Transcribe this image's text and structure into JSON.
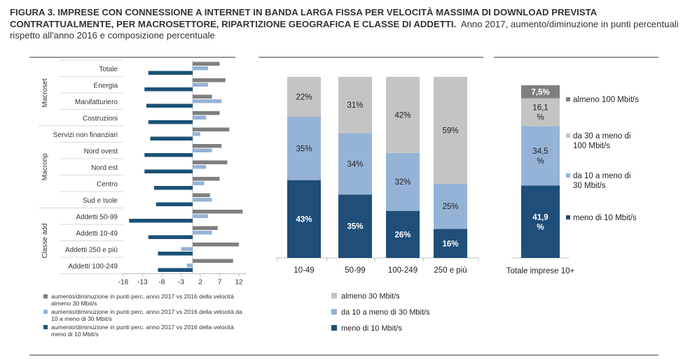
{
  "title": {
    "bold": "FIGURA 3. IMPRESE CON CONNESSIONE A INTERNET IN BANDA LARGA FISSA PER VELOCITÀ MASSIMA DI DOWNLOAD PREVISTA CONTRATTUALMENTE, PER MACROSETTORE, RIPARTIZIONE GEOGRAFICA E CLASSE DI ADDETTI.",
    "normal": "Anno 2017, aumento/diminuzione in punti percentuali rispetto all'anno 2016 e composizione percentuale"
  },
  "colors": {
    "almeno30": "#c4c4c4",
    "da10a30": "#95b3d7",
    "meno10": "#1f4e79",
    "gray_bar": "#7f7f7f",
    "light_blue_bar": "#95b3d7",
    "dark_blue_bar": "#1a5276",
    "grid": "#d9d9d9",
    "axis": "#bfbfbf"
  },
  "chart_data": [
    {
      "type": "bar",
      "orientation": "horizontal",
      "categories": [
        "Totale",
        "Energia",
        "Manifatturiero",
        "Costruzioni",
        "Servizi non finanziari",
        "Nord ovest",
        "Nord est",
        "Centro",
        "Sud e Isole",
        "Addetti 50-99",
        "Addetti 10-49",
        "Addetti 250 e più",
        "Addetti 100-249"
      ],
      "groups": [
        {
          "label": "Macroset",
          "categories": [
            "Totale",
            "Energia",
            "Manifatturiero",
            "Costruzioni"
          ]
        },
        {
          "label": "Macrorip",
          "categories": [
            "Servizi non finanziari",
            "Nord ovest",
            "Nord est",
            "Centro",
            "Sud e Isole"
          ]
        },
        {
          "label": "Classe add",
          "categories": [
            "Addetti 50-99",
            "Addetti 10-49",
            "Addetti 250 e più",
            "Addetti 100-249"
          ]
        }
      ],
      "series": [
        {
          "name": "aumento/diminuzione in punti perc. anno 2017 vs 2016 della velocità almeno 30 Mbit/s",
          "values": [
            7,
            8.5,
            5,
            7,
            9.5,
            7.5,
            9,
            7,
            4.5,
            13,
            6.5,
            12,
            10.5
          ]
        },
        {
          "name": "aumento/diminuzione in punti perc. anno 2017 vs 2016 della velocità da 10 a meno di 30 Mbit/s",
          "values": [
            4,
            4,
            7.5,
            3.5,
            2,
            5,
            3.5,
            3,
            5,
            4,
            5,
            -3,
            -1.5
          ]
        },
        {
          "name": "aumento/diminuzione in punti perc. anno 2017 vs 2016 della velocità meno di 10 Mbit/s",
          "values": [
            -11.5,
            -12.5,
            -12,
            -11.5,
            -11,
            -12.5,
            -12.5,
            -10,
            -9.5,
            -16.5,
            -11.5,
            -9,
            -9
          ]
        }
      ],
      "x_ticks": [
        -18,
        -13,
        -8,
        -3,
        2,
        7,
        12
      ],
      "xlim": [
        -18,
        14
      ]
    },
    {
      "type": "bar",
      "stacked": true,
      "categories": [
        "10-49",
        "50-99",
        "100-249",
        "250 e più"
      ],
      "series": [
        {
          "name": "meno di 10 Mbit/s",
          "values": [
            43,
            35,
            26,
            16
          ],
          "labels": [
            "43%",
            "35%",
            "26%",
            "16%"
          ]
        },
        {
          "name": "da 10 a meno di 30 Mbit/s",
          "values": [
            35,
            34,
            32,
            25
          ],
          "labels": [
            "35%",
            "34%",
            "32%",
            "25%"
          ]
        },
        {
          "name": "almeno 30 Mbit/s",
          "values": [
            22,
            31,
            42,
            59
          ],
          "labels": [
            "22%",
            "31%",
            "42%",
            "59%"
          ]
        }
      ],
      "ylim": [
        0,
        100
      ]
    },
    {
      "type": "bar",
      "stacked": true,
      "categories": [
        "Totale imprese 10+"
      ],
      "series": [
        {
          "name": "meno di 10 Mbit/s",
          "values": [
            41.9
          ],
          "labels": [
            [
              "41,9",
              "%"
            ]
          ]
        },
        {
          "name": "da 10 a meno di 30 Mbit/s",
          "values": [
            34.5
          ],
          "labels": [
            [
              "34,5",
              "%"
            ]
          ]
        },
        {
          "name": "da 30 a meno di 100 Mbit/s",
          "values": [
            16.1
          ],
          "labels": [
            [
              "16,1",
              "%"
            ]
          ]
        },
        {
          "name": "almeno 100 Mbit/s",
          "values": [
            7.5
          ],
          "labels": [
            [
              "7,5%"
            ]
          ]
        }
      ],
      "legend": [
        {
          "lines": [
            "almeno 100 Mbit/s"
          ],
          "color": "#7f7f7f"
        },
        {
          "lines": [
            "da 30 a meno di",
            "100 Mbit/s"
          ],
          "color": "#c4c4c4"
        },
        {
          "lines": [
            "da 10 a meno di",
            "30 Mbit/s"
          ],
          "color": "#95b3d7"
        },
        {
          "lines": [
            "meno di 10 Mbit/s"
          ],
          "color": "#1f4e79"
        }
      ],
      "ylim": [
        0,
        100
      ]
    }
  ],
  "middle_legend": [
    {
      "label": "almeno 30 Mbit/s",
      "color": "#c4c4c4"
    },
    {
      "label": "da 10 a meno di 30 Mbit/s",
      "color": "#95b3d7"
    },
    {
      "label": "meno di 10 Mbit/s",
      "color": "#1f4e79"
    }
  ],
  "left_legend": [
    {
      "lines": [
        "aumento/diminuzione in punti perc. anno 2017 vs 2016 della velocità",
        "almeno 30 Mbit/s"
      ],
      "color": "#7f7f7f"
    },
    {
      "lines": [
        "aumento/diminuzione in punti perc. anno 2017 vs 2016 della velocità da",
        "10 a meno di 30 Mbit/s"
      ],
      "color": "#95b3d7"
    },
    {
      "lines": [
        "aumento/diminuzione in punti perc. anno 2017 vs 2016 della velocità",
        "meno di 10 Mbit/s"
      ],
      "color": "#1a5276"
    }
  ]
}
